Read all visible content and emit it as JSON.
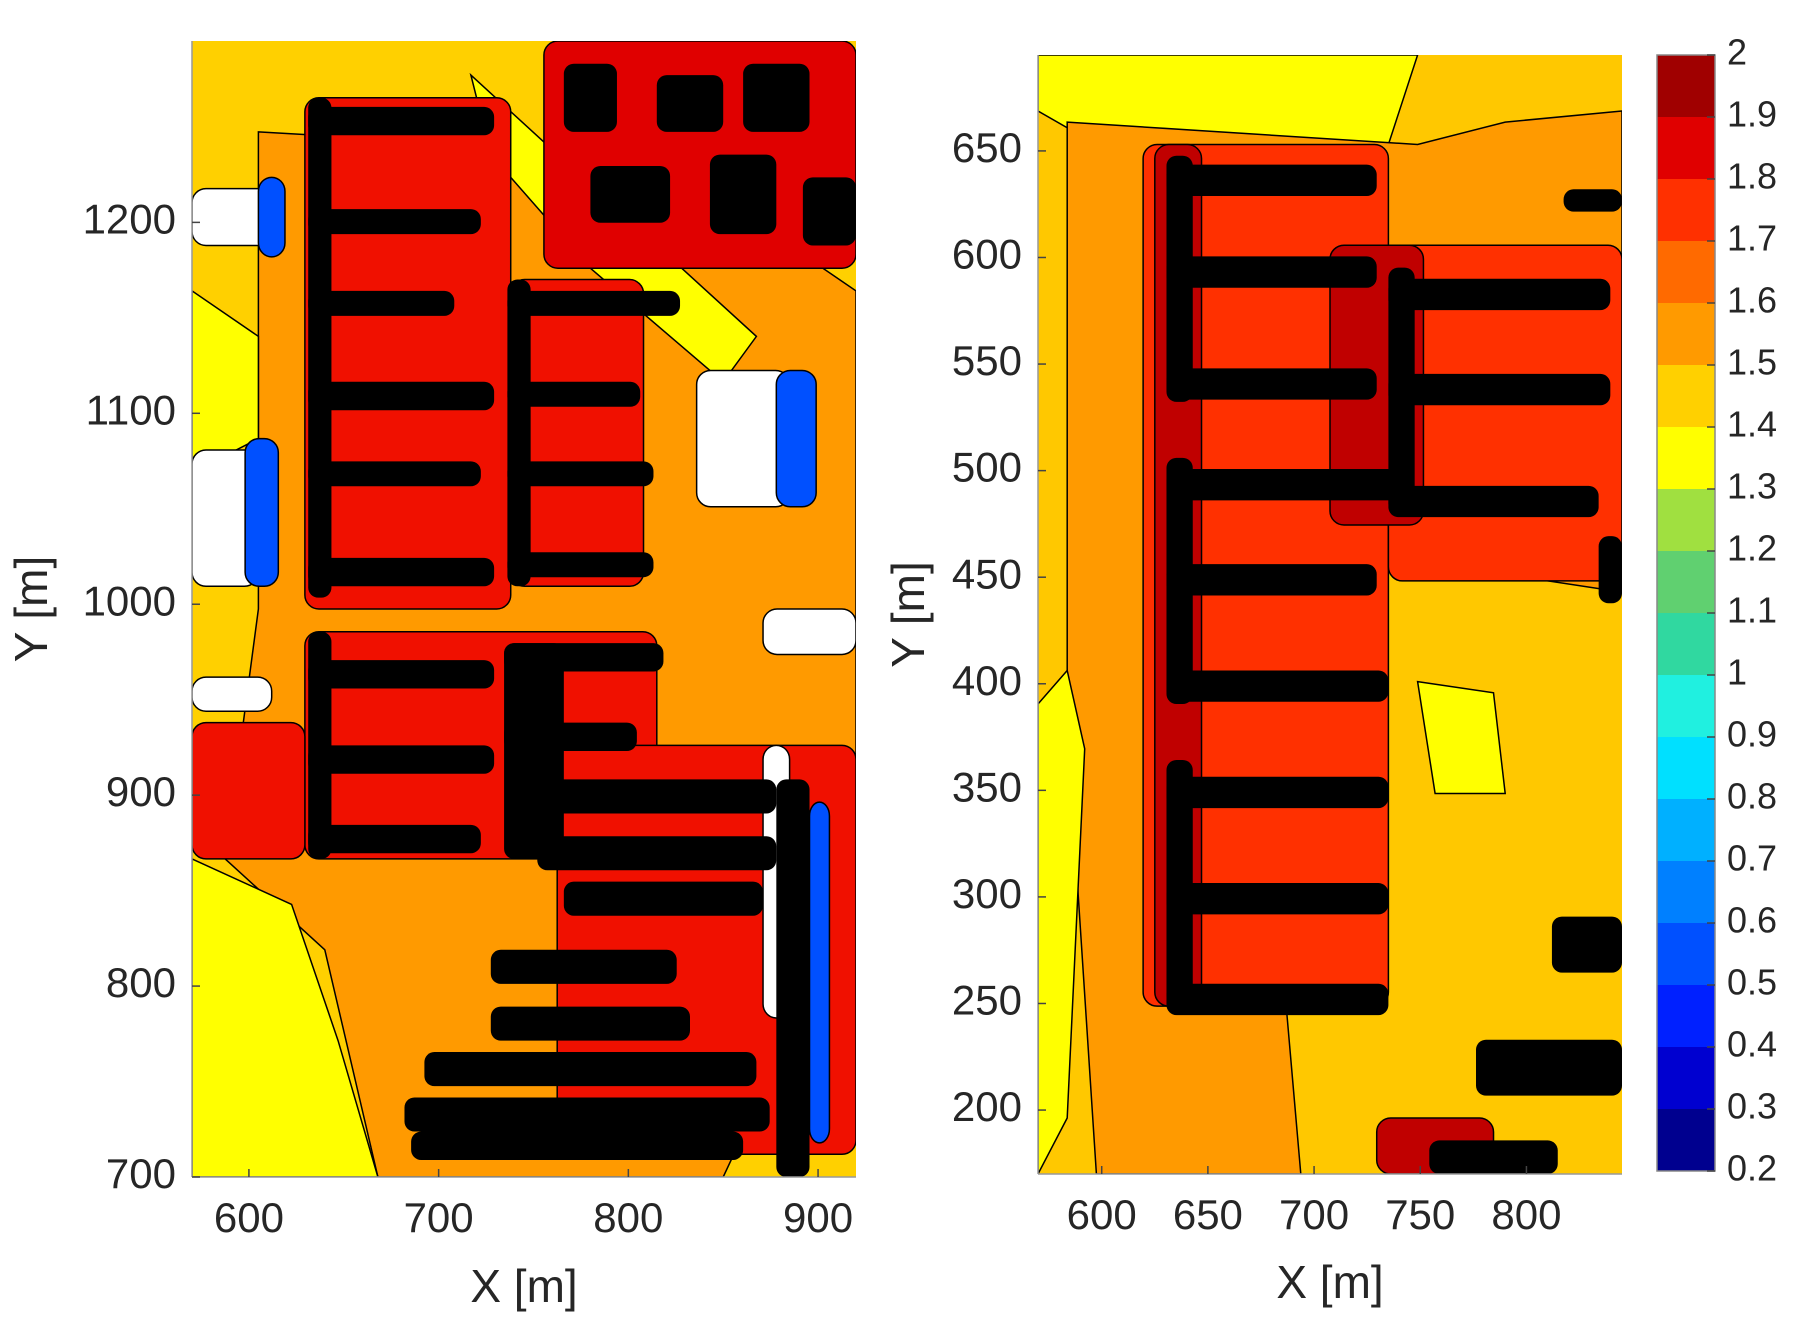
{
  "chart_data": [
    {
      "type": "contour",
      "xlabel": "X [m]",
      "ylabel": "Y [m]",
      "xlim": [
        570,
        920
      ],
      "ylim": [
        700,
        1295
      ],
      "xticks": [
        600,
        700,
        800,
        900
      ],
      "yticks": [
        700,
        800,
        900,
        1000,
        1100,
        1200
      ]
    },
    {
      "type": "contour",
      "xlabel": "X [m]",
      "ylabel": "Y [m]",
      "xlim": [
        570,
        845
      ],
      "ylim": [
        170,
        695
      ],
      "xticks": [
        600,
        650,
        700,
        750,
        800
      ],
      "yticks": [
        200,
        250,
        300,
        350,
        400,
        450,
        500,
        550,
        600,
        650
      ],
      "colorbar": {
        "ticks": [
          0.2,
          0.3,
          0.4,
          0.5,
          0.6,
          0.7,
          0.8,
          0.9,
          1,
          1.1,
          1.2,
          1.3,
          1.4,
          1.5,
          1.6,
          1.7,
          1.8,
          1.9,
          2
        ],
        "colors": [
          "#00008f",
          "#0000d0",
          "#0020ff",
          "#0050ff",
          "#0080ff",
          "#00b0ff",
          "#00e0ff",
          "#20f0e0",
          "#30d8a0",
          "#60d070",
          "#a0e040",
          "#ffff00",
          "#ffd000",
          "#ff9a00",
          "#ff6a00",
          "#ff3000",
          "#e00000",
          "#a00000"
        ]
      }
    }
  ]
}
